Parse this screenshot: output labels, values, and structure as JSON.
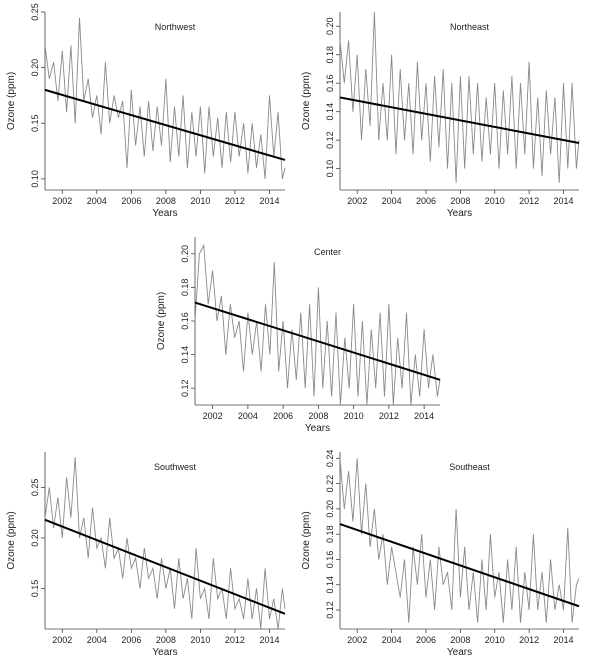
{
  "chart_data": [
    {
      "type": "line",
      "title": "Northwest",
      "xlabel": "Years",
      "ylabel": "Ozone (ppm)",
      "x_ticks": [
        "2002",
        "2004",
        "2006",
        "2008",
        "2010",
        "2012",
        "2014"
      ],
      "y_ticks": [
        "0.10",
        "0.15",
        "0.20",
        "0.25"
      ],
      "xlim": [
        2001.0,
        2014.9
      ],
      "ylim": [
        0.09,
        0.25
      ],
      "trend": {
        "x": [
          2001.0,
          2014.9
        ],
        "y": [
          0.18,
          0.117
        ]
      },
      "series": [
        {
          "x": [
            2001.0,
            2001.25,
            2001.5,
            2001.75,
            2002.0,
            2002.25,
            2002.5,
            2002.75,
            2003.0,
            2003.25,
            2003.5,
            2003.75,
            2004.0,
            2004.25,
            2004.5,
            2004.75,
            2005.0,
            2005.25,
            2005.5,
            2005.75,
            2006.0,
            2006.25,
            2006.5,
            2006.75,
            2007.0,
            2007.25,
            2007.5,
            2007.75,
            2008.0,
            2008.25,
            2008.5,
            2008.75,
            2009.0,
            2009.25,
            2009.5,
            2009.75,
            2010.0,
            2010.25,
            2010.5,
            2010.75,
            2011.0,
            2011.25,
            2011.5,
            2011.75,
            2012.0,
            2012.25,
            2012.5,
            2012.75,
            2013.0,
            2013.25,
            2013.5,
            2013.75,
            2014.0,
            2014.25,
            2014.5,
            2014.75,
            2014.9
          ],
          "y": [
            0.22,
            0.19,
            0.205,
            0.17,
            0.215,
            0.16,
            0.22,
            0.15,
            0.245,
            0.17,
            0.19,
            0.155,
            0.175,
            0.14,
            0.205,
            0.15,
            0.175,
            0.155,
            0.17,
            0.11,
            0.18,
            0.13,
            0.165,
            0.12,
            0.17,
            0.125,
            0.165,
            0.13,
            0.19,
            0.115,
            0.165,
            0.12,
            0.175,
            0.11,
            0.16,
            0.12,
            0.165,
            0.105,
            0.165,
            0.12,
            0.155,
            0.11,
            0.16,
            0.115,
            0.16,
            0.12,
            0.15,
            0.105,
            0.15,
            0.11,
            0.14,
            0.1,
            0.175,
            0.12,
            0.16,
            0.1,
            0.11
          ]
        }
      ]
    },
    {
      "type": "line",
      "title": "Northeast",
      "xlabel": "Years",
      "ylabel": "Ozone (ppm)",
      "x_ticks": [
        "2002",
        "2004",
        "2006",
        "2008",
        "2010",
        "2012",
        "2014"
      ],
      "y_ticks": [
        "0.10",
        "0.12",
        "0.14",
        "0.16",
        "0.18",
        "0.20"
      ],
      "xlim": [
        2001.0,
        2014.9
      ],
      "ylim": [
        0.085,
        0.21
      ],
      "trend": {
        "x": [
          2001.0,
          2014.9
        ],
        "y": [
          0.15,
          0.118
        ]
      },
      "series": [
        {
          "x": [
            2001.0,
            2001.25,
            2001.5,
            2001.75,
            2002.0,
            2002.25,
            2002.5,
            2002.75,
            2003.0,
            2003.25,
            2003.5,
            2003.75,
            2004.0,
            2004.25,
            2004.5,
            2004.75,
            2005.0,
            2005.25,
            2005.5,
            2005.75,
            2006.0,
            2006.25,
            2006.5,
            2006.75,
            2007.0,
            2007.25,
            2007.5,
            2007.75,
            2008.0,
            2008.25,
            2008.5,
            2008.75,
            2009.0,
            2009.25,
            2009.5,
            2009.75,
            2010.0,
            2010.25,
            2010.5,
            2010.75,
            2011.0,
            2011.25,
            2011.5,
            2011.75,
            2012.0,
            2012.25,
            2012.5,
            2012.75,
            2013.0,
            2013.25,
            2013.5,
            2013.75,
            2014.0,
            2014.25,
            2014.5,
            2014.75,
            2014.9
          ],
          "y": [
            0.19,
            0.16,
            0.19,
            0.14,
            0.18,
            0.12,
            0.17,
            0.13,
            0.21,
            0.12,
            0.16,
            0.12,
            0.18,
            0.11,
            0.17,
            0.12,
            0.16,
            0.11,
            0.175,
            0.12,
            0.16,
            0.105,
            0.165,
            0.115,
            0.17,
            0.1,
            0.16,
            0.09,
            0.165,
            0.1,
            0.165,
            0.11,
            0.16,
            0.105,
            0.15,
            0.11,
            0.16,
            0.1,
            0.155,
            0.11,
            0.165,
            0.1,
            0.16,
            0.11,
            0.175,
            0.1,
            0.15,
            0.095,
            0.155,
            0.11,
            0.15,
            0.09,
            0.16,
            0.1,
            0.16,
            0.1,
            0.12
          ]
        }
      ]
    },
    {
      "type": "line",
      "title": "Center",
      "xlabel": "Years",
      "ylabel": "Ozone (ppm)",
      "x_ticks": [
        "2002",
        "2004",
        "2006",
        "2008",
        "2010",
        "2012",
        "2014"
      ],
      "y_ticks": [
        "0.12",
        "0.14",
        "0.16",
        "0.18",
        "0.20"
      ],
      "xlim": [
        2001.0,
        2014.9
      ],
      "ylim": [
        0.11,
        0.21
      ],
      "trend": {
        "x": [
          2001.0,
          2014.9
        ],
        "y": [
          0.171,
          0.125
        ]
      },
      "series": [
        {
          "x": [
            2001.0,
            2001.25,
            2001.5,
            2001.75,
            2002.0,
            2002.25,
            2002.5,
            2002.75,
            2003.0,
            2003.25,
            2003.5,
            2003.75,
            2004.0,
            2004.25,
            2004.5,
            2004.75,
            2005.0,
            2005.25,
            2005.5,
            2005.75,
            2006.0,
            2006.25,
            2006.5,
            2006.75,
            2007.0,
            2007.25,
            2007.5,
            2007.75,
            2008.0,
            2008.25,
            2008.5,
            2008.75,
            2009.0,
            2009.25,
            2009.5,
            2009.75,
            2010.0,
            2010.25,
            2010.5,
            2010.75,
            2011.0,
            2011.25,
            2011.5,
            2011.75,
            2012.0,
            2012.25,
            2012.5,
            2012.75,
            2013.0,
            2013.25,
            2013.5,
            2013.75,
            2014.0,
            2014.25,
            2014.5,
            2014.75,
            2014.9
          ],
          "y": [
            0.16,
            0.2,
            0.205,
            0.17,
            0.19,
            0.16,
            0.175,
            0.14,
            0.17,
            0.15,
            0.16,
            0.13,
            0.165,
            0.14,
            0.16,
            0.13,
            0.17,
            0.14,
            0.195,
            0.13,
            0.16,
            0.12,
            0.155,
            0.125,
            0.165,
            0.12,
            0.17,
            0.115,
            0.18,
            0.12,
            0.16,
            0.115,
            0.165,
            0.11,
            0.15,
            0.12,
            0.17,
            0.115,
            0.16,
            0.11,
            0.155,
            0.12,
            0.165,
            0.115,
            0.17,
            0.11,
            0.15,
            0.12,
            0.165,
            0.11,
            0.14,
            0.115,
            0.155,
            0.12,
            0.14,
            0.115,
            0.125
          ]
        }
      ]
    },
    {
      "type": "line",
      "title": "Southwest",
      "xlabel": "Years",
      "ylabel": "Ozone (ppm)",
      "x_ticks": [
        "2002",
        "2004",
        "2006",
        "2008",
        "2010",
        "2012",
        "2014"
      ],
      "y_ticks": [
        "0.15",
        "0.20",
        "0.25"
      ],
      "xlim": [
        2001.0,
        2014.9
      ],
      "ylim": [
        0.11,
        0.285
      ],
      "trend": {
        "x": [
          2001.0,
          2014.9
        ],
        "y": [
          0.218,
          0.125
        ]
      },
      "series": [
        {
          "x": [
            2001.0,
            2001.25,
            2001.5,
            2001.75,
            2002.0,
            2002.25,
            2002.5,
            2002.75,
            2003.0,
            2003.25,
            2003.5,
            2003.75,
            2004.0,
            2004.25,
            2004.5,
            2004.75,
            2005.0,
            2005.25,
            2005.5,
            2005.75,
            2006.0,
            2006.25,
            2006.5,
            2006.75,
            2007.0,
            2007.25,
            2007.5,
            2007.75,
            2008.0,
            2008.25,
            2008.5,
            2008.75,
            2009.0,
            2009.25,
            2009.5,
            2009.75,
            2010.0,
            2010.25,
            2010.5,
            2010.75,
            2011.0,
            2011.25,
            2011.5,
            2011.75,
            2012.0,
            2012.25,
            2012.5,
            2012.75,
            2013.0,
            2013.25,
            2013.5,
            2013.75,
            2014.0,
            2014.25,
            2014.5,
            2014.75,
            2014.9
          ],
          "y": [
            0.22,
            0.25,
            0.21,
            0.24,
            0.2,
            0.26,
            0.22,
            0.28,
            0.2,
            0.22,
            0.18,
            0.23,
            0.19,
            0.2,
            0.17,
            0.22,
            0.18,
            0.19,
            0.16,
            0.2,
            0.17,
            0.18,
            0.15,
            0.19,
            0.16,
            0.17,
            0.14,
            0.18,
            0.15,
            0.17,
            0.13,
            0.18,
            0.14,
            0.16,
            0.12,
            0.19,
            0.14,
            0.15,
            0.12,
            0.18,
            0.14,
            0.15,
            0.12,
            0.17,
            0.13,
            0.14,
            0.12,
            0.16,
            0.12,
            0.15,
            0.11,
            0.17,
            0.12,
            0.14,
            0.11,
            0.15,
            0.13
          ]
        }
      ]
    },
    {
      "type": "line",
      "title": "Southeast",
      "xlabel": "Years",
      "ylabel": "Ozone (ppm)",
      "x_ticks": [
        "2002",
        "2004",
        "2006",
        "2008",
        "2010",
        "2012",
        "2014"
      ],
      "y_ticks": [
        "0.12",
        "0.14",
        "0.16",
        "0.18",
        "0.20",
        "0.22",
        "0.24"
      ],
      "xlim": [
        2001.0,
        2014.9
      ],
      "ylim": [
        0.105,
        0.245
      ],
      "trend": {
        "x": [
          2001.0,
          2014.9
        ],
        "y": [
          0.188,
          0.123
        ]
      },
      "series": [
        {
          "x": [
            2001.0,
            2001.25,
            2001.5,
            2001.75,
            2002.0,
            2002.25,
            2002.5,
            2002.75,
            2003.0,
            2003.25,
            2003.5,
            2003.75,
            2004.0,
            2004.25,
            2004.5,
            2004.75,
            2005.0,
            2005.25,
            2005.5,
            2005.75,
            2006.0,
            2006.25,
            2006.5,
            2006.75,
            2007.0,
            2007.25,
            2007.5,
            2007.75,
            2008.0,
            2008.25,
            2008.5,
            2008.75,
            2009.0,
            2009.25,
            2009.5,
            2009.75,
            2010.0,
            2010.25,
            2010.5,
            2010.75,
            2011.0,
            2011.25,
            2011.5,
            2011.75,
            2012.0,
            2012.25,
            2012.5,
            2012.75,
            2013.0,
            2013.25,
            2013.5,
            2013.75,
            2014.0,
            2014.25,
            2014.5,
            2014.75,
            2014.9
          ],
          "y": [
            0.24,
            0.2,
            0.23,
            0.19,
            0.24,
            0.18,
            0.22,
            0.17,
            0.2,
            0.16,
            0.18,
            0.14,
            0.17,
            0.15,
            0.13,
            0.16,
            0.11,
            0.17,
            0.14,
            0.18,
            0.13,
            0.16,
            0.12,
            0.17,
            0.14,
            0.15,
            0.12,
            0.2,
            0.13,
            0.17,
            0.12,
            0.15,
            0.11,
            0.16,
            0.12,
            0.18,
            0.13,
            0.15,
            0.11,
            0.16,
            0.12,
            0.17,
            0.11,
            0.15,
            0.12,
            0.18,
            0.12,
            0.15,
            0.11,
            0.16,
            0.12,
            0.14,
            0.12,
            0.185,
            0.11,
            0.14,
            0.145
          ]
        }
      ]
    }
  ]
}
